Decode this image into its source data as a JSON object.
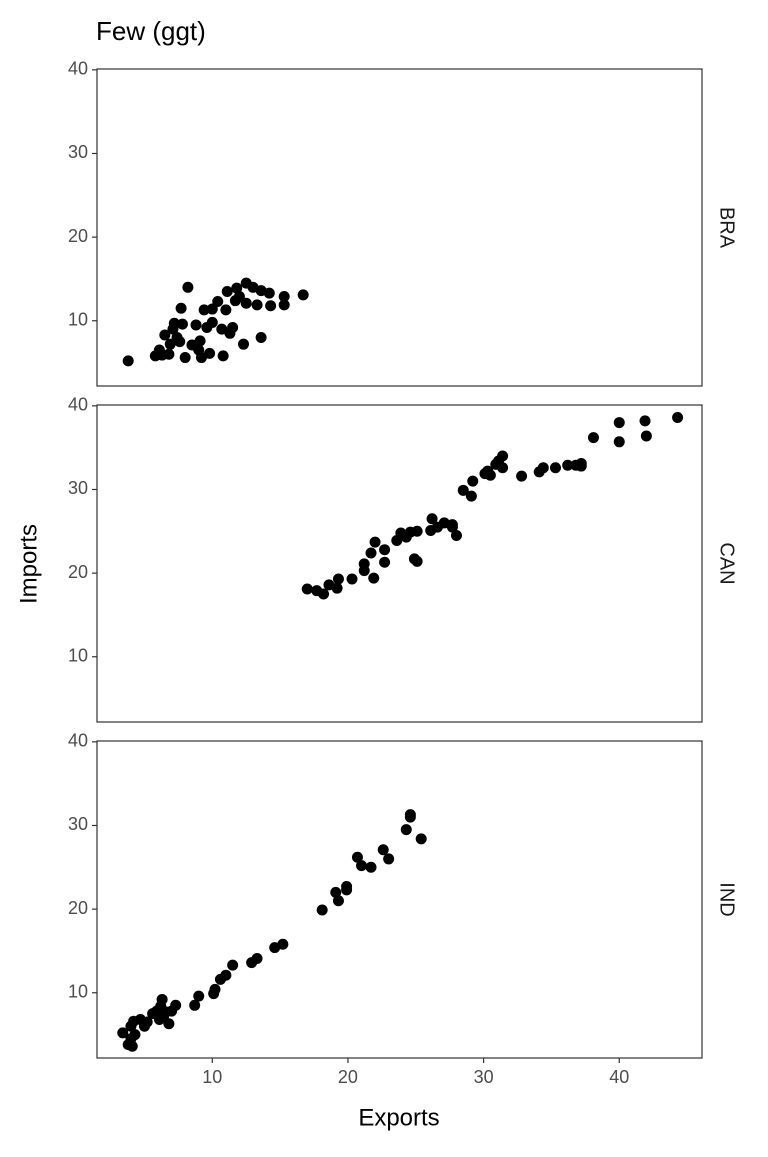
{
  "chart_data": {
    "type": "scatter",
    "title": "Few (ggt)",
    "xlabel": "Exports",
    "ylabel": "Imports",
    "xlim": [
      1.5,
      46.1
    ],
    "ylim": [
      2.2,
      40.1
    ],
    "xticks": [
      10,
      20,
      30,
      40
    ],
    "yticks": [
      10,
      20,
      30,
      40
    ],
    "grid": false,
    "color": "#000000",
    "facets": [
      {
        "name": "BRA",
        "x": [
          3.8,
          5.8,
          6.1,
          6.3,
          6.5,
          6.8,
          6.9,
          7.1,
          7.2,
          7.4,
          7.6,
          7.8,
          7.7,
          8.0,
          8.2,
          8.5,
          8.8,
          9.0,
          9.1,
          9.2,
          9.4,
          9.6,
          9.8,
          10.0,
          10.0,
          10.4,
          10.7,
          10.8,
          11.0,
          11.1,
          11.3,
          11.5,
          11.7,
          11.8,
          12.0,
          12.3,
          12.5,
          12.5,
          13.0,
          13.3,
          13.6,
          13.6,
          14.2,
          14.3,
          15.3,
          15.3,
          16.7
        ],
        "y": [
          5.2,
          5.8,
          6.5,
          5.9,
          8.3,
          6.0,
          7.2,
          9.0,
          9.7,
          8.0,
          7.5,
          9.6,
          11.5,
          5.6,
          14.0,
          7.1,
          9.5,
          6.5,
          7.6,
          5.6,
          11.3,
          9.2,
          6.1,
          11.4,
          9.8,
          12.3,
          9.0,
          5.8,
          11.3,
          13.5,
          8.5,
          9.2,
          12.4,
          13.9,
          12.9,
          7.2,
          14.5,
          12.1,
          14.0,
          11.9,
          13.6,
          8.0,
          13.3,
          11.8,
          12.9,
          11.9,
          13.1
        ]
      },
      {
        "name": "CAN",
        "x": [
          17.0,
          17.7,
          18.2,
          18.6,
          19.2,
          19.3,
          20.3,
          21.2,
          21.2,
          21.7,
          22.0,
          21.9,
          22.7,
          22.7,
          23.6,
          23.9,
          24.3,
          24.6,
          24.9,
          25.1,
          25.1,
          26.1,
          26.2,
          26.6,
          27.1,
          27.7,
          27.7,
          28.0,
          28.5,
          29.2,
          29.1,
          30.1,
          30.3,
          30.5,
          30.9,
          31.1,
          31.4,
          31.4,
          32.8,
          34.1,
          34.4,
          35.3,
          36.2,
          36.8,
          37.2,
          37.2,
          38.1,
          40.0,
          40.0,
          41.9,
          42.0,
          44.3
        ],
        "y": [
          18.1,
          17.9,
          17.5,
          18.6,
          18.2,
          19.3,
          19.3,
          20.3,
          21.1,
          22.4,
          23.7,
          19.4,
          22.8,
          21.3,
          23.9,
          24.8,
          24.3,
          24.9,
          21.7,
          21.4,
          25.0,
          25.1,
          26.5,
          25.5,
          26.0,
          25.5,
          25.8,
          24.5,
          29.9,
          31.0,
          29.2,
          31.9,
          32.2,
          31.7,
          33.0,
          33.4,
          34.0,
          32.6,
          31.6,
          32.1,
          32.6,
          32.6,
          32.9,
          32.9,
          33.1,
          32.8,
          36.2,
          38.0,
          35.7,
          38.2,
          36.4,
          38.6
        ]
      },
      {
        "name": "IND",
        "x": [
          3.4,
          3.8,
          4.0,
          4.0,
          4.1,
          4.2,
          4.3,
          4.7,
          5.0,
          5.2,
          5.6,
          5.9,
          6.1,
          6.2,
          6.3,
          6.4,
          6.6,
          6.8,
          7.0,
          7.3,
          8.7,
          9.0,
          10.1,
          10.2,
          10.6,
          11.0,
          11.5,
          12.9,
          13.3,
          14.6,
          15.2,
          18.1,
          19.1,
          19.3,
          19.9,
          19.9,
          20.7,
          21.0,
          21.7,
          22.6,
          23.0,
          24.3,
          24.6,
          24.6,
          25.4
        ],
        "y": [
          5.2,
          3.8,
          4.5,
          6.0,
          3.6,
          6.6,
          5.0,
          6.8,
          6.0,
          6.5,
          7.5,
          7.8,
          6.8,
          8.4,
          9.2,
          7.1,
          7.7,
          6.3,
          7.8,
          8.5,
          8.5,
          9.6,
          9.9,
          10.4,
          11.6,
          12.1,
          13.3,
          13.6,
          14.1,
          15.4,
          15.8,
          19.9,
          22.0,
          21.0,
          22.3,
          22.7,
          26.2,
          25.2,
          25.0,
          27.1,
          26.0,
          29.5,
          31.3,
          31.0,
          28.4
        ]
      }
    ]
  }
}
